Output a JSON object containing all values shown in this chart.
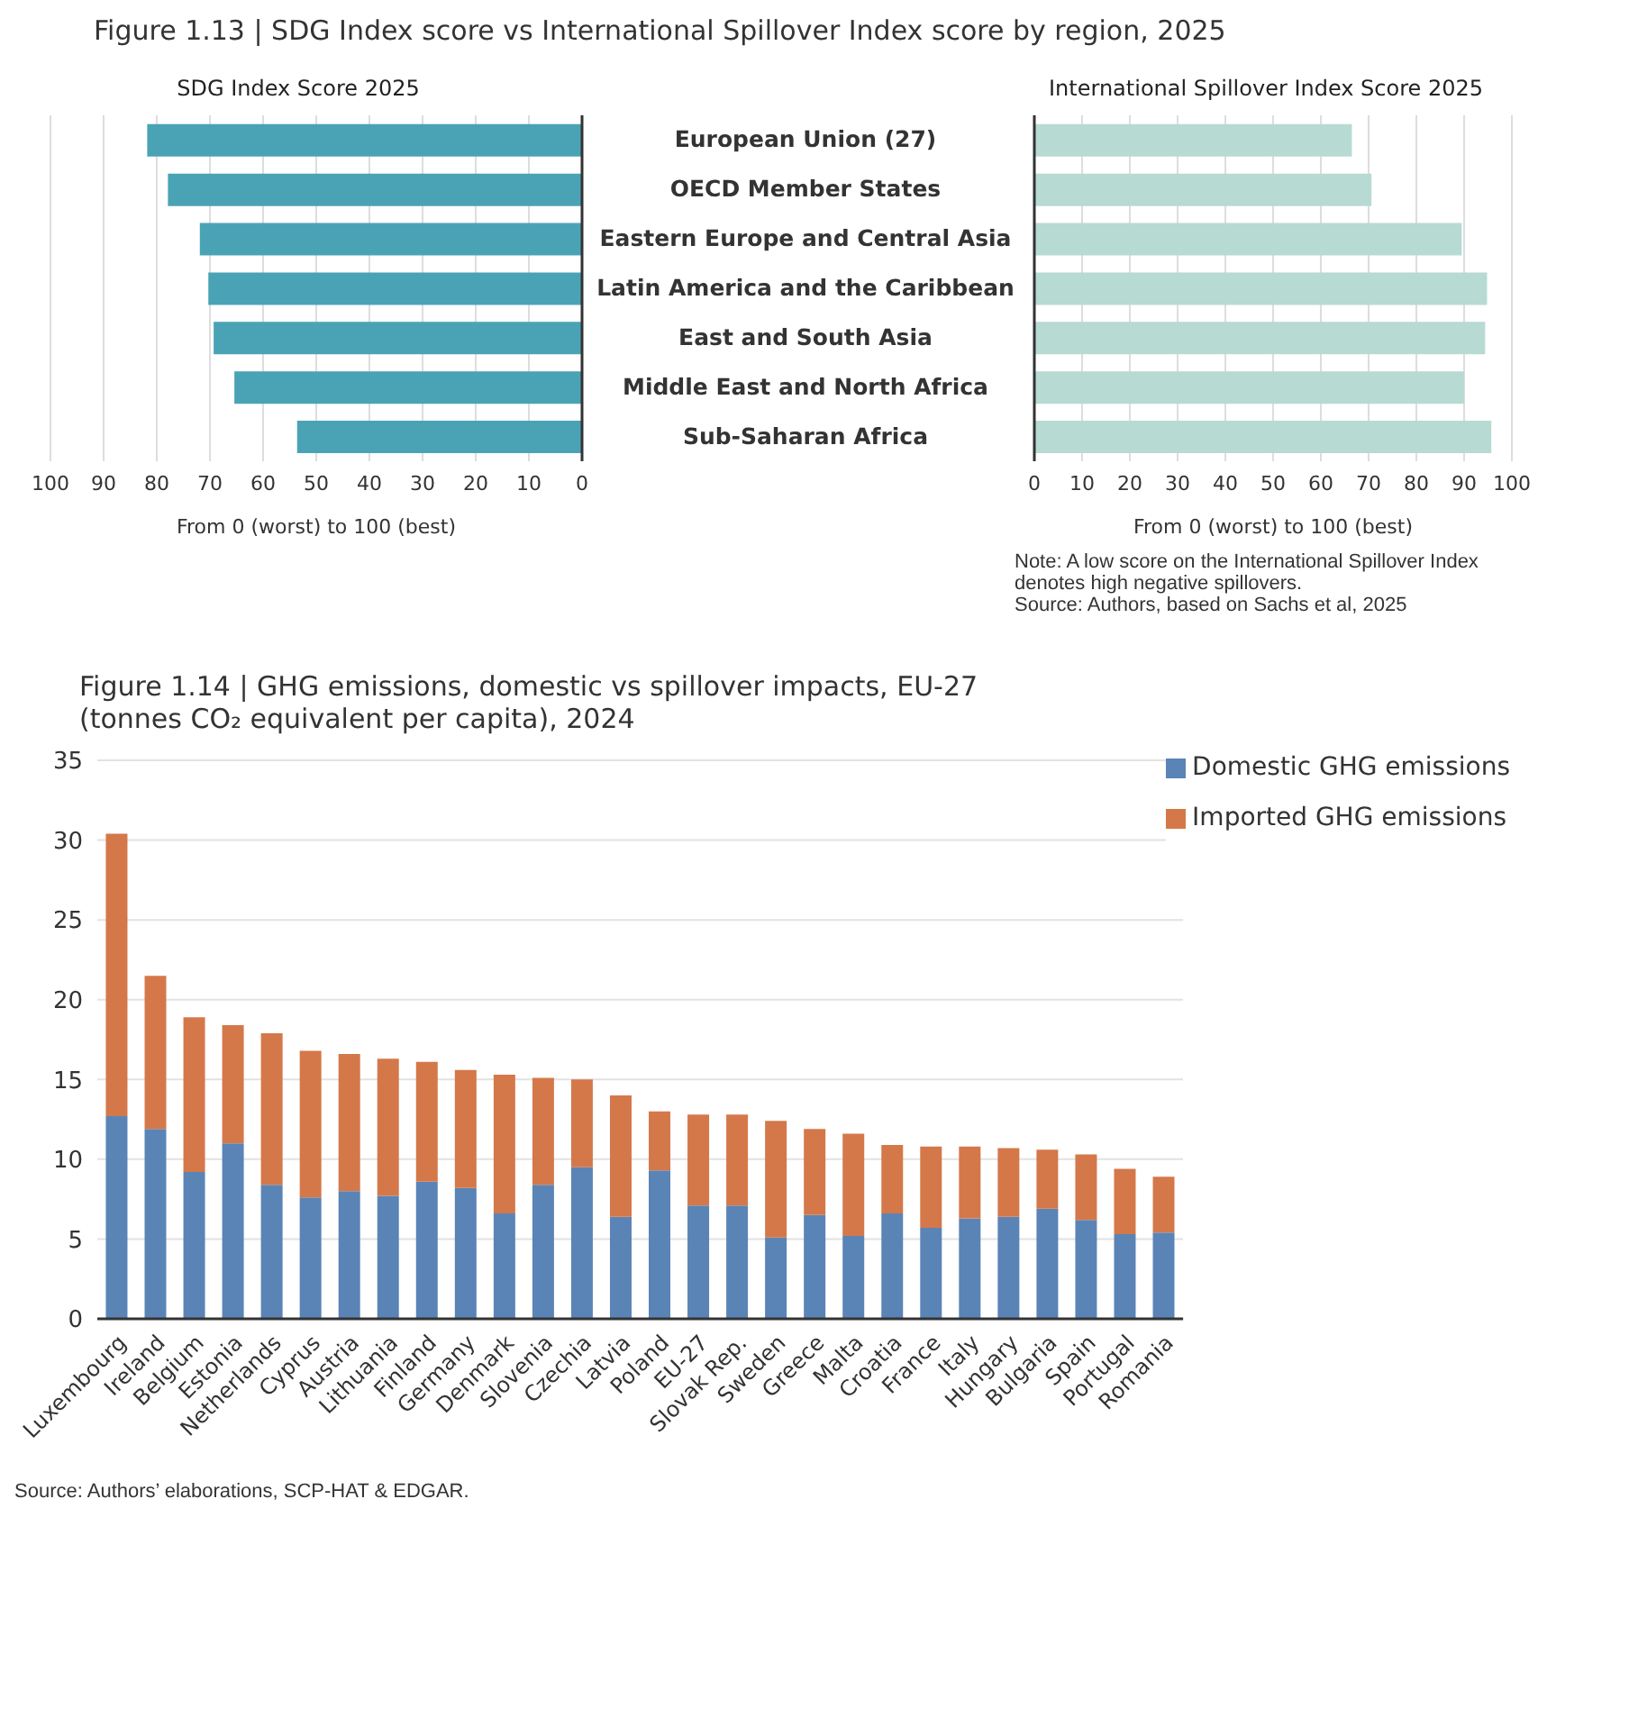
{
  "chart_data": [
    {
      "type": "bar",
      "orientation": "horizontal",
      "title": "Figure 1.13 | SDG Index score vs International Spillover Index score by region, 2025",
      "subtitle": "SDG Index Score 2025",
      "xlabel": "From 0 (worst) to 100 (best)",
      "categories": [
        "European Union (27)",
        "OECD Member States",
        "Eastern Europe and Central Asia",
        "Latin America and the Caribbean",
        "East and South Asia",
        "Middle East and North Africa",
        "Sub-Saharan Africa"
      ],
      "values": [
        81.8,
        77.9,
        71.9,
        70.3,
        69.3,
        65.4,
        53.6
      ],
      "color": "#4aa3b5",
      "xlim": [
        100,
        0
      ],
      "xticks": [
        100,
        90,
        80,
        70,
        60,
        50,
        40,
        30,
        20,
        10,
        0
      ],
      "grid": "x"
    },
    {
      "type": "bar",
      "orientation": "horizontal",
      "title": "International Spillover Index Score 2025",
      "xlabel": "From 0 (worst) to 100 (best)",
      "categories": [
        null,
        null,
        null,
        null,
        null,
        null,
        null
      ],
      "tick_labels": "x",
      "values": [
        66.5,
        70.6,
        89.5,
        94.8,
        94.4,
        90.0,
        95.7
      ],
      "color": "#b7dad2",
      "xlim": [
        0,
        100
      ],
      "xticks": [
        0,
        10,
        20,
        30,
        40,
        50,
        60,
        70,
        80,
        90,
        100
      ],
      "grid": "x",
      "annotations": [
        "Note: A low score on the International Spillover Index denotes high negative spillovers.",
        "Source: Authors, based on Sachs et al, 2025"
      ]
    },
    {
      "type": "bar",
      "stacked": true,
      "title": "Figure 1.14 | GHG emissions, domestic vs spillover impacts, EU-27 (tonnes CO₂ equivalent per capita), 2024",
      "categories": [
        "Luxembourg",
        "Ireland",
        "Belgium",
        "Estonia",
        "Netherlands",
        "Cyprus",
        "Austria",
        "Lithuania",
        "Finland",
        "Germany",
        "Denmark",
        "Slovenia",
        "Czechia",
        "Latvia",
        "Poland",
        "EU-27",
        "Slovak Rep.",
        "Sweden",
        "Greece",
        "Malta",
        "Croatia",
        "France",
        "Italy",
        "Hungary",
        "Bulgaria",
        "Spain",
        "Portugal",
        "Romania"
      ],
      "series": [
        {
          "name": "Domestic GHG emissions",
          "color": "#5a84b6",
          "values": [
            12.7,
            11.9,
            9.2,
            11.0,
            8.4,
            7.6,
            8.0,
            7.7,
            8.6,
            8.2,
            6.6,
            8.4,
            9.5,
            6.4,
            9.3,
            7.1,
            7.1,
            5.1,
            6.5,
            5.2,
            6.6,
            5.7,
            6.3,
            6.4,
            6.9,
            6.2,
            5.3,
            5.4
          ]
        },
        {
          "name": "Imported GHG emissions",
          "color": "#d4784a",
          "values": [
            17.7,
            9.6,
            9.7,
            7.4,
            9.5,
            9.2,
            8.6,
            8.6,
            7.5,
            7.4,
            8.7,
            6.7,
            5.5,
            7.6,
            3.7,
            5.7,
            5.7,
            7.3,
            5.4,
            6.4,
            4.3,
            5.1,
            4.5,
            4.3,
            3.7,
            4.1,
            4.1,
            3.5
          ]
        }
      ],
      "ylim": [
        0,
        35
      ],
      "yticks": [
        0,
        5,
        10,
        15,
        20,
        25,
        30,
        35
      ],
      "grid": "y",
      "legend": "top right",
      "annotations": [
        "Source: Authors’ elaborations, SCP-HAT & EDGAR."
      ]
    }
  ]
}
